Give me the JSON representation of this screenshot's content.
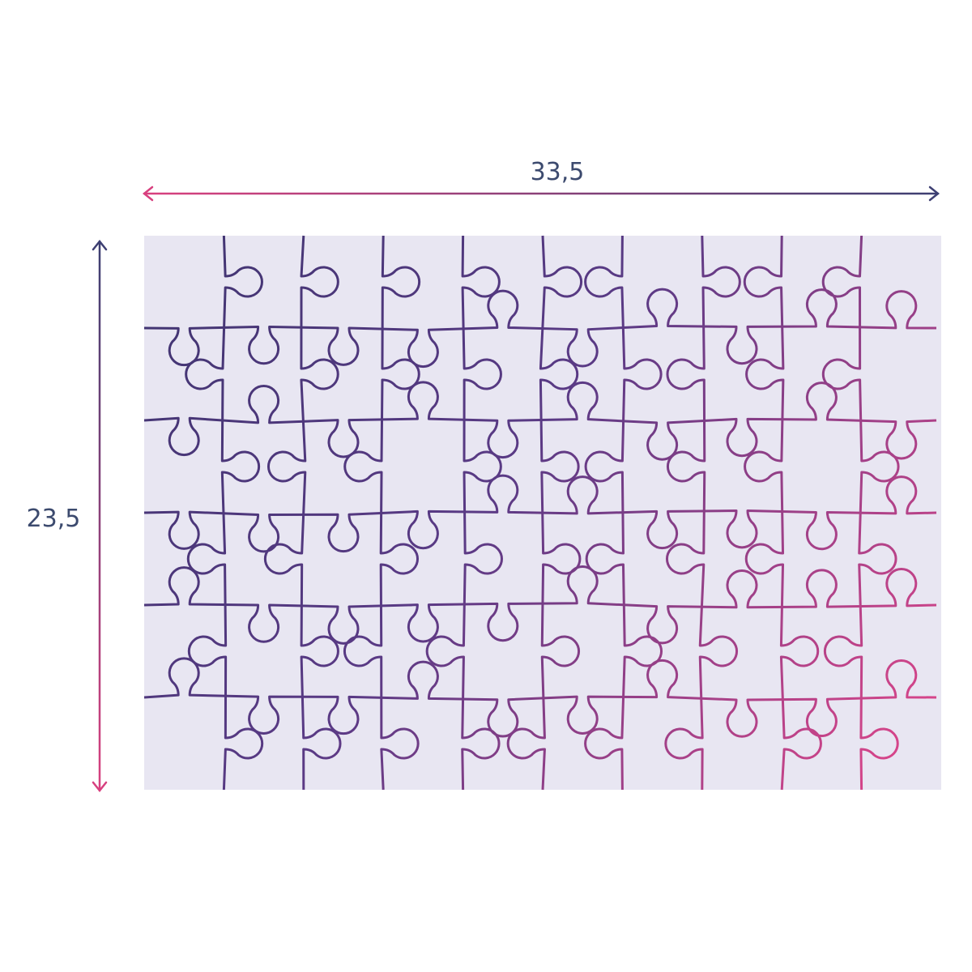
{
  "dimensions": {
    "width_label": "33,5",
    "height_label": "23,5"
  },
  "colors": {
    "puzzle_background": "#e8e6f2",
    "line_start": "#3f3470",
    "line_end": "#e5468a",
    "label_text": "#3c4a6e"
  }
}
